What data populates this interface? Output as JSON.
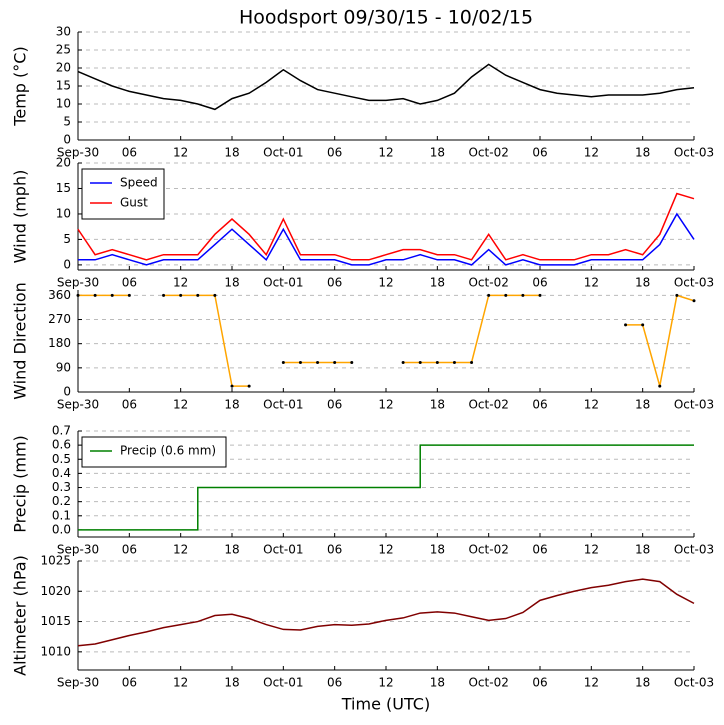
{
  "chart_data": [
    {
      "type": "line",
      "title": "Hoodsport 09/30/15 - 10/02/15",
      "ylabel": "Temp (°C)",
      "x": [
        0,
        2,
        4,
        6,
        8,
        10,
        12,
        14,
        16,
        18,
        20,
        22,
        24,
        26,
        28,
        30,
        32,
        34,
        36,
        38,
        40,
        42,
        44,
        46,
        48,
        50,
        52,
        54,
        56,
        58,
        60,
        62,
        64,
        66,
        68,
        70,
        72
      ],
      "series": [
        {
          "color": "#000000",
          "values": [
            19,
            17,
            15,
            13.5,
            12.5,
            11.5,
            11,
            10,
            8.5,
            11.5,
            13,
            16,
            19.5,
            16.5,
            14,
            13,
            12,
            11,
            11,
            11.5,
            10,
            11,
            13,
            17.5,
            21,
            18,
            16,
            14,
            13,
            12.5,
            12,
            12.5,
            12.5,
            12.5,
            13,
            14,
            14.5
          ]
        }
      ],
      "xlim": [
        0,
        72
      ],
      "xticks": [
        {
          "value": 0,
          "label": "Sep-30"
        },
        {
          "value": 6,
          "label": "06"
        },
        {
          "value": 12,
          "label": "12"
        },
        {
          "value": 18,
          "label": "18"
        },
        {
          "value": 24,
          "label": "Oct-01"
        },
        {
          "value": 30,
          "label": "06"
        },
        {
          "value": 36,
          "label": "12"
        },
        {
          "value": 42,
          "label": "18"
        },
        {
          "value": 48,
          "label": "Oct-02"
        },
        {
          "value": 54,
          "label": "06"
        },
        {
          "value": 60,
          "label": "12"
        },
        {
          "value": 66,
          "label": "18"
        },
        {
          "value": 72,
          "label": "Oct-03"
        }
      ],
      "ylim": [
        0,
        30
      ],
      "yticks": [
        0,
        5,
        10,
        15,
        20,
        25,
        30
      ],
      "grid": true
    },
    {
      "type": "line",
      "ylabel": "Wind (mph)",
      "x": [
        0,
        2,
        4,
        6,
        8,
        10,
        12,
        14,
        16,
        18,
        20,
        22,
        24,
        26,
        28,
        30,
        32,
        34,
        36,
        38,
        40,
        42,
        44,
        46,
        48,
        50,
        52,
        54,
        56,
        58,
        60,
        62,
        64,
        66,
        68,
        70,
        72
      ],
      "series": [
        {
          "name": "Speed",
          "color": "#0000ff",
          "values": [
            1,
            1,
            2,
            1,
            0,
            1,
            1,
            1,
            4,
            7,
            4,
            1,
            7,
            1,
            1,
            1,
            0,
            0,
            1,
            1,
            2,
            1,
            1,
            0,
            3,
            0,
            1,
            0,
            0,
            0,
            1,
            1,
            1,
            1,
            4,
            10,
            5
          ]
        },
        {
          "name": "Gust",
          "color": "#ff0000",
          "values": [
            7,
            2,
            3,
            2,
            1,
            2,
            2,
            2,
            6,
            9,
            6,
            2,
            9,
            2,
            2,
            2,
            1,
            1,
            2,
            3,
            3,
            2,
            2,
            1,
            6,
            1,
            2,
            1,
            1,
            1,
            2,
            2,
            3,
            2,
            6,
            14,
            13
          ]
        }
      ],
      "xlim": [
        0,
        72
      ],
      "xticks": [
        {
          "value": 0,
          "label": "Sep-30"
        },
        {
          "value": 6,
          "label": "06"
        },
        {
          "value": 12,
          "label": "12"
        },
        {
          "value": 18,
          "label": "18"
        },
        {
          "value": 24,
          "label": "Oct-01"
        },
        {
          "value": 30,
          "label": "06"
        },
        {
          "value": 36,
          "label": "12"
        },
        {
          "value": 42,
          "label": "18"
        },
        {
          "value": 48,
          "label": "Oct-02"
        },
        {
          "value": 54,
          "label": "06"
        },
        {
          "value": 60,
          "label": "12"
        },
        {
          "value": 66,
          "label": "18"
        },
        {
          "value": 72,
          "label": "Oct-03"
        }
      ],
      "ylim": [
        -1,
        20
      ],
      "yticks": [
        0,
        5,
        10,
        15,
        20
      ],
      "grid": true,
      "legend": "upper left"
    },
    {
      "type": "line",
      "ylabel": "Wind Direction",
      "x": [
        0,
        2,
        4,
        6,
        8,
        10,
        12,
        14,
        16,
        18,
        20,
        22,
        24,
        26,
        28,
        30,
        32,
        34,
        36,
        38,
        40,
        42,
        44,
        46,
        48,
        50,
        52,
        54,
        56,
        58,
        60,
        62,
        64,
        66,
        68,
        70,
        72
      ],
      "series": [
        {
          "color": "#ffa500",
          "values": [
            360,
            360,
            360,
            360,
            null,
            360,
            360,
            360,
            360,
            22,
            22,
            null,
            110,
            110,
            110,
            110,
            110,
            null,
            null,
            110,
            110,
            110,
            110,
            110,
            360,
            360,
            360,
            360,
            null,
            null,
            null,
            null,
            250,
            250,
            22,
            360,
            340
          ]
        }
      ],
      "xlim": [
        0,
        72
      ],
      "xticks": [
        {
          "value": 0,
          "label": "Sep-30"
        },
        {
          "value": 6,
          "label": "06"
        },
        {
          "value": 12,
          "label": "12"
        },
        {
          "value": 18,
          "label": "18"
        },
        {
          "value": 24,
          "label": "Oct-01"
        },
        {
          "value": 30,
          "label": "06"
        },
        {
          "value": 36,
          "label": "12"
        },
        {
          "value": 42,
          "label": "18"
        },
        {
          "value": 48,
          "label": "Oct-02"
        },
        {
          "value": 54,
          "label": "06"
        },
        {
          "value": 60,
          "label": "12"
        },
        {
          "value": 66,
          "label": "18"
        },
        {
          "value": 72,
          "label": "Oct-03"
        }
      ],
      "ylim": [
        0,
        380
      ],
      "yticks": [
        0,
        90,
        180,
        270,
        360
      ],
      "grid": true
    },
    {
      "type": "step",
      "ylabel": "Precip (mm)",
      "x": [
        0,
        14,
        40,
        72
      ],
      "series": [
        {
          "name": "Precip (0.6 mm)",
          "color": "#008000",
          "values": [
            0,
            0.3,
            0.6,
            0.6
          ]
        }
      ],
      "xlim": [
        0,
        72
      ],
      "xticks": [
        {
          "value": 0,
          "label": "Sep-30"
        },
        {
          "value": 6,
          "label": "06"
        },
        {
          "value": 12,
          "label": "12"
        },
        {
          "value": 18,
          "label": "18"
        },
        {
          "value": 24,
          "label": "Oct-01"
        },
        {
          "value": 30,
          "label": "06"
        },
        {
          "value": 36,
          "label": "12"
        },
        {
          "value": 42,
          "label": "18"
        },
        {
          "value": 48,
          "label": "Oct-02"
        },
        {
          "value": 54,
          "label": "06"
        },
        {
          "value": 60,
          "label": "12"
        },
        {
          "value": 66,
          "label": "18"
        },
        {
          "value": 72,
          "label": "Oct-03"
        }
      ],
      "ylim": [
        -0.05,
        0.7
      ],
      "yticks": [
        {
          "value": 0,
          "label": "0.0"
        },
        0.1,
        0.2,
        0.3,
        0.4,
        0.5,
        0.6,
        0.7
      ],
      "grid": true,
      "legend": "upper left"
    },
    {
      "type": "line",
      "ylabel": "Altimeter (hPa)",
      "xlabel": "Time (UTC)",
      "x": [
        0,
        2,
        4,
        6,
        8,
        10,
        12,
        14,
        16,
        18,
        20,
        22,
        24,
        26,
        28,
        30,
        32,
        34,
        36,
        38,
        40,
        42,
        44,
        46,
        48,
        50,
        52,
        54,
        56,
        58,
        60,
        62,
        64,
        66,
        68,
        70,
        72
      ],
      "series": [
        {
          "color": "#800000",
          "values": [
            1011,
            1011.3,
            1012,
            1012.7,
            1013.3,
            1014,
            1014.5,
            1015,
            1016,
            1016.2,
            1015.5,
            1014.5,
            1013.7,
            1013.6,
            1014.2,
            1014.5,
            1014.4,
            1014.6,
            1015.2,
            1015.6,
            1016.4,
            1016.6,
            1016.4,
            1015.8,
            1015.2,
            1015.5,
            1016.5,
            1018.5,
            1019.3,
            1020,
            1020.6,
            1021,
            1021.6,
            1022,
            1021.6,
            1019.5,
            1018
          ]
        }
      ],
      "xlim": [
        0,
        72
      ],
      "xticks": [
        {
          "value": 0,
          "label": "Sep-30"
        },
        {
          "value": 6,
          "label": "06"
        },
        {
          "value": 12,
          "label": "12"
        },
        {
          "value": 18,
          "label": "18"
        },
        {
          "value": 24,
          "label": "Oct-01"
        },
        {
          "value": 30,
          "label": "06"
        },
        {
          "value": 36,
          "label": "12"
        },
        {
          "value": 42,
          "label": "18"
        },
        {
          "value": 48,
          "label": "Oct-02"
        },
        {
          "value": 54,
          "label": "06"
        },
        {
          "value": 60,
          "label": "12"
        },
        {
          "value": 66,
          "label": "18"
        },
        {
          "value": 72,
          "label": "Oct-03"
        }
      ],
      "ylim": [
        1007,
        1025
      ],
      "yticks": [
        1010,
        1015,
        1020,
        1025
      ],
      "grid": true
    }
  ]
}
